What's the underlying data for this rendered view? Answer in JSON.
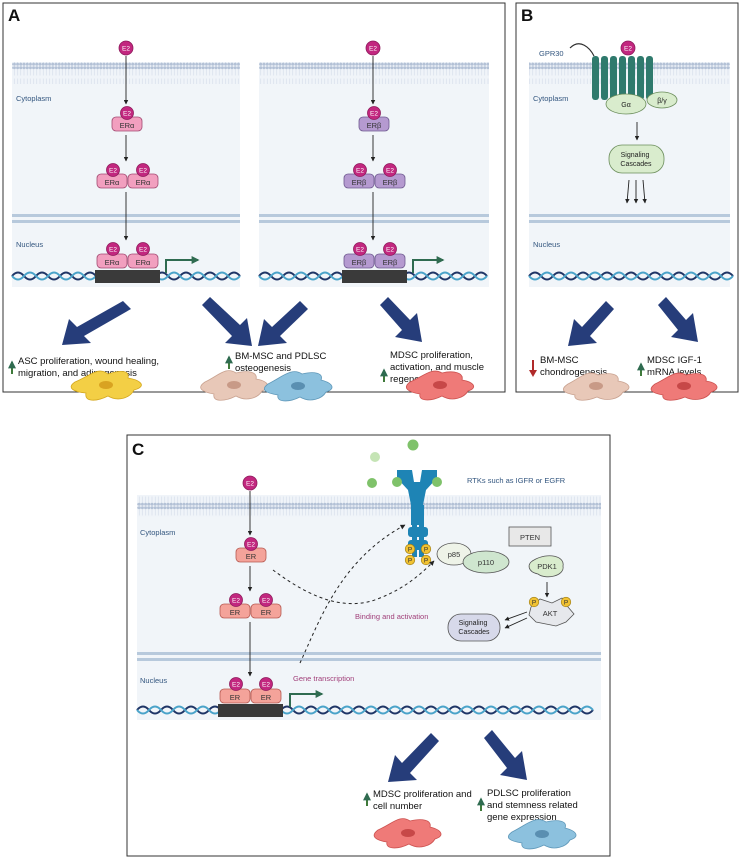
{
  "panels": {
    "a": {
      "letter": "A",
      "cytoplasm": "Cytoplasm",
      "nucleus": "Nucleus",
      "ligand": "E2",
      "receptor_alpha": "ERα",
      "receptor_beta": "ERβ",
      "outcome_1": [
        "ASC proliferation, wound healing,",
        "migration, and adipogenesis"
      ],
      "outcome_2": [
        "BM-MSC and PDLSC",
        "osteogenesis"
      ],
      "outcome_3": [
        "MDSC proliferation,",
        "activation, and muscle",
        "regeneration"
      ]
    },
    "b": {
      "letter": "B",
      "gpr30": "GPR30",
      "cytoplasm": "Cytoplasm",
      "nucleus": "Nucleus",
      "ligand": "E2",
      "g_alpha": "Gα",
      "beta_gamma": "β/γ",
      "signaling": [
        "Signaling",
        "Cascades"
      ],
      "outcome_1": [
        "BM-MSC",
        "chondrogenesis"
      ],
      "outcome_2": [
        "MDSC IGF-1",
        "mRNA levels"
      ]
    },
    "c": {
      "letter": "C",
      "cytoplasm": "Cytoplasm",
      "nucleus": "Nucleus",
      "ligand": "E2",
      "receptor": "ER",
      "rtk_label": "RTKs such as IGFR or EGFR",
      "phospho": "P",
      "p85": "p85",
      "p110": "p110",
      "pten": "PTEN",
      "pdk1": "PDK1",
      "akt": "AKT",
      "signaling": [
        "Signaling",
        "Cascades"
      ],
      "binding": "Binding and activation",
      "gene_transcription": "Gene transcription",
      "outcome_1": [
        "MDSC proliferation and",
        "cell number"
      ],
      "outcome_2": [
        "PDLSC proliferation",
        "and stemness related",
        "gene expression"
      ]
    }
  },
  "colors": {
    "up_arrow": "#3f7a3a",
    "down_arrow": "#b02a2a",
    "big_arrow": "#263d7a",
    "e2": "#c2277f",
    "er_alpha": "#f29fbf",
    "er_beta": "#b59ad0",
    "er_c": "#f4a39a",
    "membrane": "#b8c6d9",
    "nuclear_envelope": "#b7c9dc",
    "gpr30": "#2f7a6d",
    "rtk": "#1e84b5",
    "p_yellow": "#f1c232",
    "cell_yellow": "#f3cf45",
    "cell_beige": "#e8c8b8",
    "cell_blue": "#8cc1de",
    "cell_red": "#ef7a78"
  }
}
